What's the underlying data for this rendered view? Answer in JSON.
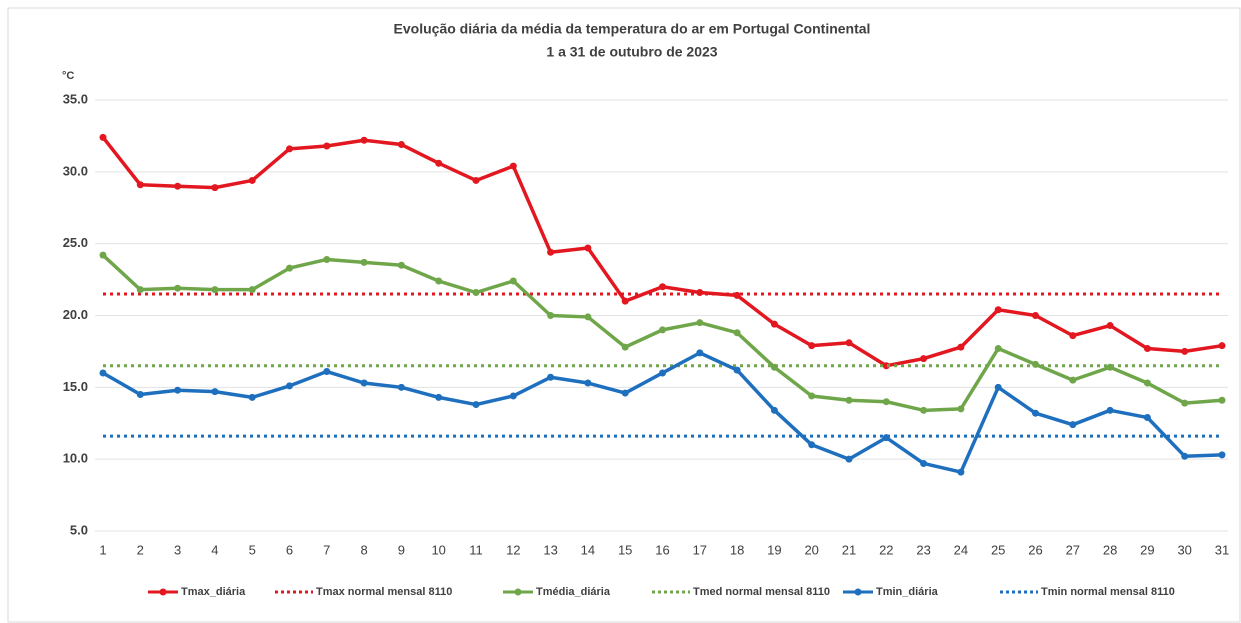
{
  "chart_data": {
    "type": "line",
    "title": "Evolução diária da média da temperatura do ar em Portugal Continental",
    "subtitle": "1 a 31 de outubro de 2023",
    "y_label": "°C",
    "categories": [
      "1",
      "2",
      "3",
      "4",
      "5",
      "6",
      "7",
      "8",
      "9",
      "10",
      "11",
      "12",
      "13",
      "14",
      "15",
      "16",
      "17",
      "18",
      "19",
      "20",
      "21",
      "22",
      "23",
      "24",
      "25",
      "26",
      "27",
      "28",
      "29",
      "30",
      "31"
    ],
    "ylim": [
      5,
      35
    ],
    "yticks": [
      {
        "value": 5,
        "label": "5.0"
      },
      {
        "value": 10,
        "label": "10.0"
      },
      {
        "value": 15,
        "label": "15.0"
      },
      {
        "value": 20,
        "label": "20.0"
      },
      {
        "value": 25,
        "label": "25.0"
      },
      {
        "value": 30,
        "label": "30.0"
      },
      {
        "value": 35,
        "label": "35.0"
      }
    ],
    "grid": true,
    "legend": "bottom",
    "series": [
      {
        "name": "Tmax_diária",
        "color": "#e3171f",
        "marker": true,
        "values": [
          32.4,
          29.1,
          29.0,
          28.9,
          29.4,
          31.6,
          31.8,
          32.2,
          31.9,
          30.6,
          29.4,
          30.4,
          24.4,
          24.7,
          21.0,
          22.0,
          21.6,
          21.4,
          19.4,
          17.9,
          18.1,
          16.5,
          17.0,
          17.8,
          20.4,
          20.0,
          18.6,
          19.3,
          17.7,
          17.5,
          17.9
        ]
      },
      {
        "name": "Tmax normal mensal 8110",
        "color": "#e3171f",
        "dash": "dotted",
        "value": 21.5
      },
      {
        "name": "Tmédia_diária",
        "color": "#70a64a",
        "marker": true,
        "values": [
          24.2,
          21.8,
          21.9,
          21.8,
          21.8,
          23.3,
          23.9,
          23.7,
          23.5,
          22.4,
          21.6,
          22.4,
          20.0,
          19.9,
          17.8,
          19.0,
          19.5,
          18.8,
          16.4,
          14.4,
          14.1,
          14.0,
          13.4,
          13.5,
          17.7,
          16.6,
          15.5,
          16.4,
          15.3,
          13.9,
          14.1
        ]
      },
      {
        "name": "Tmed normal mensal 8110",
        "color": "#70a64a",
        "dash": "dotted",
        "value": 16.5
      },
      {
        "name": "Tmin_diária",
        "color": "#1e6fbe",
        "marker": true,
        "values": [
          16.0,
          14.5,
          14.8,
          14.7,
          14.3,
          15.1,
          16.1,
          15.3,
          15.0,
          14.3,
          13.8,
          14.4,
          15.7,
          15.3,
          14.6,
          16.0,
          17.4,
          16.2,
          13.4,
          11.0,
          10.0,
          11.5,
          9.7,
          9.1,
          15.0,
          13.2,
          12.4,
          13.4,
          12.9,
          10.2,
          10.3
        ]
      },
      {
        "name": "Tmin normal mensal 8110",
        "color": "#1e6fbe",
        "dash": "dotted",
        "value": 11.6
      }
    ]
  }
}
